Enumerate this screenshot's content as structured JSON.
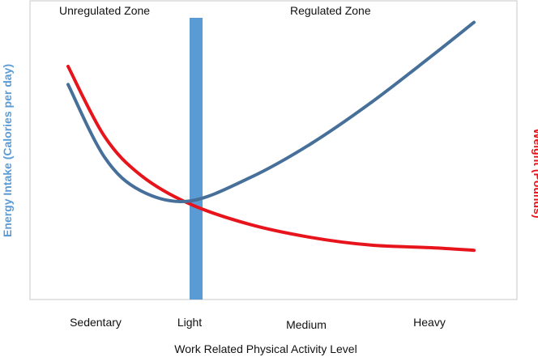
{
  "chart_data": {
    "type": "line",
    "categories": [
      "Sedentary",
      "Light",
      "Medium",
      "Heavy"
    ],
    "xlabel": "Work Related Physical Activity Level",
    "ylabel_left": "Energy Intake (Calories per day)",
    "ylabel_right": "Weight (Pounds)",
    "zones": [
      {
        "label": "Unregulated Zone"
      },
      {
        "label": "Regulated Zone"
      }
    ],
    "boundary_category": "Light",
    "colors": {
      "energy": "#46709a",
      "weight": "#e8141c",
      "boundary": "#5b9bd5",
      "ylabel_left": "#5b9bd5",
      "ylabel_right": "#e8141c",
      "frame": "#c8c8c8"
    },
    "series": [
      {
        "key": "energy",
        "x": [
          0,
          0.3,
          0.6,
          1.0,
          1.5,
          2.0,
          2.5,
          3.0,
          3.35
        ],
        "y": [
          0.83,
          0.55,
          0.42,
          0.38,
          0.47,
          0.6,
          0.76,
          0.94,
          1.07
        ]
      },
      {
        "key": "weight",
        "x": [
          0,
          0.3,
          0.6,
          1.0,
          1.5,
          2.0,
          2.5,
          3.0,
          3.35
        ],
        "y": [
          0.9,
          0.63,
          0.48,
          0.37,
          0.29,
          0.24,
          0.21,
          0.2,
          0.19
        ]
      }
    ]
  }
}
